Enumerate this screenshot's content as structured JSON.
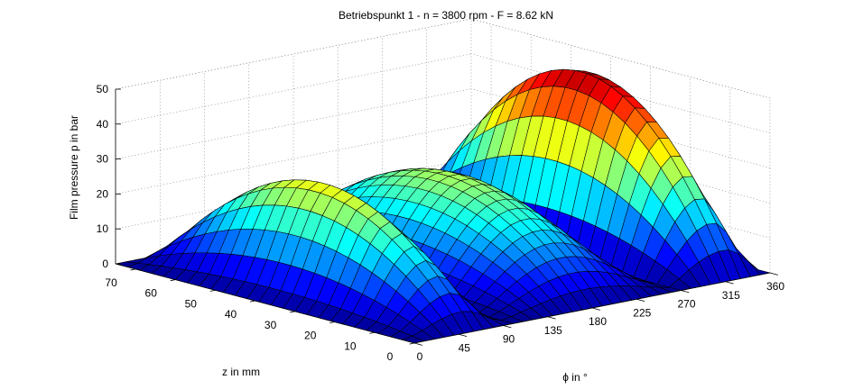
{
  "chart_data": {
    "type": "surface3d",
    "title": "Betriebspunkt 1 - n = 3800 rpm - F = 8.62 kN",
    "xlabel": "ϕ in °",
    "ylabel": "z in mm",
    "zlabel": "Film pressure p in bar",
    "x_ticks": [
      0,
      45,
      90,
      135,
      180,
      225,
      270,
      315,
      360
    ],
    "y_ticks": [
      0,
      10,
      20,
      30,
      40,
      50,
      60,
      70
    ],
    "z_ticks": [
      0,
      10,
      20,
      30,
      40,
      50
    ],
    "xlim": [
      0,
      360
    ],
    "ylim": [
      0,
      75
    ],
    "zlim": [
      0,
      50
    ],
    "grid": true,
    "colormap": "jet",
    "grid_resolution": {
      "phi_step_deg": 10,
      "z_step_mm": 3
    },
    "lobes": [
      {
        "name": "",
        "phi_start": 0,
        "phi_end": 100,
        "z_range": [
          0,
          75
        ],
        "peak_phi": 60,
        "peak_pressure": 31,
        "shape": 1.6
      },
      {
        "name": "",
        "phi_start": 100,
        "phi_end": 270,
        "z_range": [
          0,
          75
        ],
        "peak_phi": 185,
        "peak_pressure": 27,
        "shape": 1.2
      },
      {
        "name": "",
        "phi_start": 270,
        "phi_end": 360,
        "z_range": [
          0,
          75
        ],
        "peak_phi": 325,
        "peak_pressure": 49,
        "shape": 1.1
      }
    ],
    "colors": {
      "jet": [
        "#00008f",
        "#0000ff",
        "#0080ff",
        "#00ffff",
        "#80ff80",
        "#ffff00",
        "#ff8000",
        "#ff0000",
        "#800000"
      ]
    }
  }
}
